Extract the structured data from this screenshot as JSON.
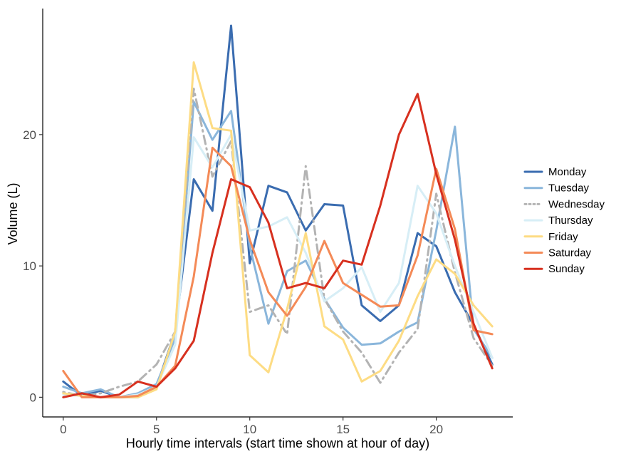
{
  "chart_data": {
    "type": "line",
    "title": "",
    "xlabel": "Hourly time intervals (start time shown at hour of day)",
    "ylabel": "Volume (L)",
    "xlim": [
      -1.1,
      24.1
    ],
    "ylim": [
      -1.5,
      29.6
    ],
    "xticks": [
      0,
      5,
      10,
      15,
      20
    ],
    "yticks": [
      0,
      10,
      20
    ],
    "grid": false,
    "legend_position": "right",
    "x": [
      0,
      1,
      2,
      3,
      4,
      5,
      6,
      7,
      8,
      9,
      10,
      11,
      12,
      13,
      14,
      15,
      16,
      17,
      18,
      19,
      20,
      21,
      22,
      23
    ],
    "series": [
      {
        "name": "Monday",
        "color": "#3a6cb0",
        "dash": "solid",
        "values": [
          1.2,
          0.1,
          0.5,
          0.0,
          0.0,
          0.8,
          5.0,
          16.6,
          14.2,
          28.3,
          10.2,
          16.1,
          15.6,
          12.7,
          14.7,
          14.6,
          7.0,
          5.8,
          7.0,
          12.5,
          11.5,
          8.0,
          5.5,
          2.5
        ]
      },
      {
        "name": "Tuesday",
        "color": "#8ab6db",
        "dash": "solid",
        "values": [
          0.8,
          0.3,
          0.6,
          0.0,
          0.3,
          1.0,
          4.5,
          22.5,
          19.6,
          21.8,
          11.5,
          5.6,
          9.6,
          10.4,
          7.5,
          5.3,
          4.0,
          4.1,
          5.0,
          5.7,
          12.7,
          20.6,
          5.2,
          3.0
        ]
      },
      {
        "name": "Wednesday",
        "color": "#b3b3b3",
        "dash": "dotdash",
        "values": [
          0.4,
          0.1,
          0.3,
          0.8,
          1.2,
          2.5,
          5.0,
          23.5,
          16.8,
          19.5,
          6.5,
          7.0,
          4.8,
          17.6,
          7.5,
          5.0,
          3.4,
          1.1,
          3.4,
          5.2,
          15.5,
          9.5,
          4.5,
          2.4
        ]
      },
      {
        "name": "Thursday",
        "color": "#d7eef6",
        "dash": "solid",
        "values": [
          0.2,
          0.1,
          0.0,
          0.0,
          0.2,
          0.8,
          4.0,
          19.8,
          17.5,
          20.0,
          12.7,
          13.0,
          13.7,
          11.0,
          7.3,
          8.3,
          9.9,
          6.5,
          8.7,
          16.1,
          14.0,
          10.0,
          6.5,
          3.0
        ]
      },
      {
        "name": "Friday",
        "color": "#fddc84",
        "dash": "solid",
        "values": [
          0.3,
          0.1,
          0.0,
          0.0,
          0.0,
          0.6,
          5.0,
          25.5,
          20.5,
          20.3,
          3.2,
          1.9,
          6.7,
          12.5,
          5.4,
          4.4,
          1.2,
          2.0,
          4.3,
          7.7,
          10.5,
          9.4,
          7.0,
          5.4
        ]
      },
      {
        "name": "Saturday",
        "color": "#f48a57",
        "dash": "solid",
        "values": [
          2.0,
          0.0,
          0.0,
          0.0,
          0.1,
          0.8,
          2.4,
          9.2,
          19.0,
          17.6,
          12.0,
          8.0,
          6.2,
          8.4,
          11.9,
          8.7,
          7.8,
          6.9,
          7.0,
          10.8,
          17.4,
          12.8,
          5.1,
          4.8
        ]
      },
      {
        "name": "Sunday",
        "color": "#d7301f",
        "dash": "solid",
        "values": [
          0.0,
          0.3,
          0.0,
          0.2,
          1.2,
          0.8,
          2.2,
          4.3,
          11.0,
          16.6,
          16.0,
          13.3,
          8.3,
          8.7,
          8.3,
          10.4,
          10.1,
          14.6,
          20.0,
          23.1,
          17.0,
          12.0,
          5.6,
          2.2
        ]
      }
    ]
  }
}
